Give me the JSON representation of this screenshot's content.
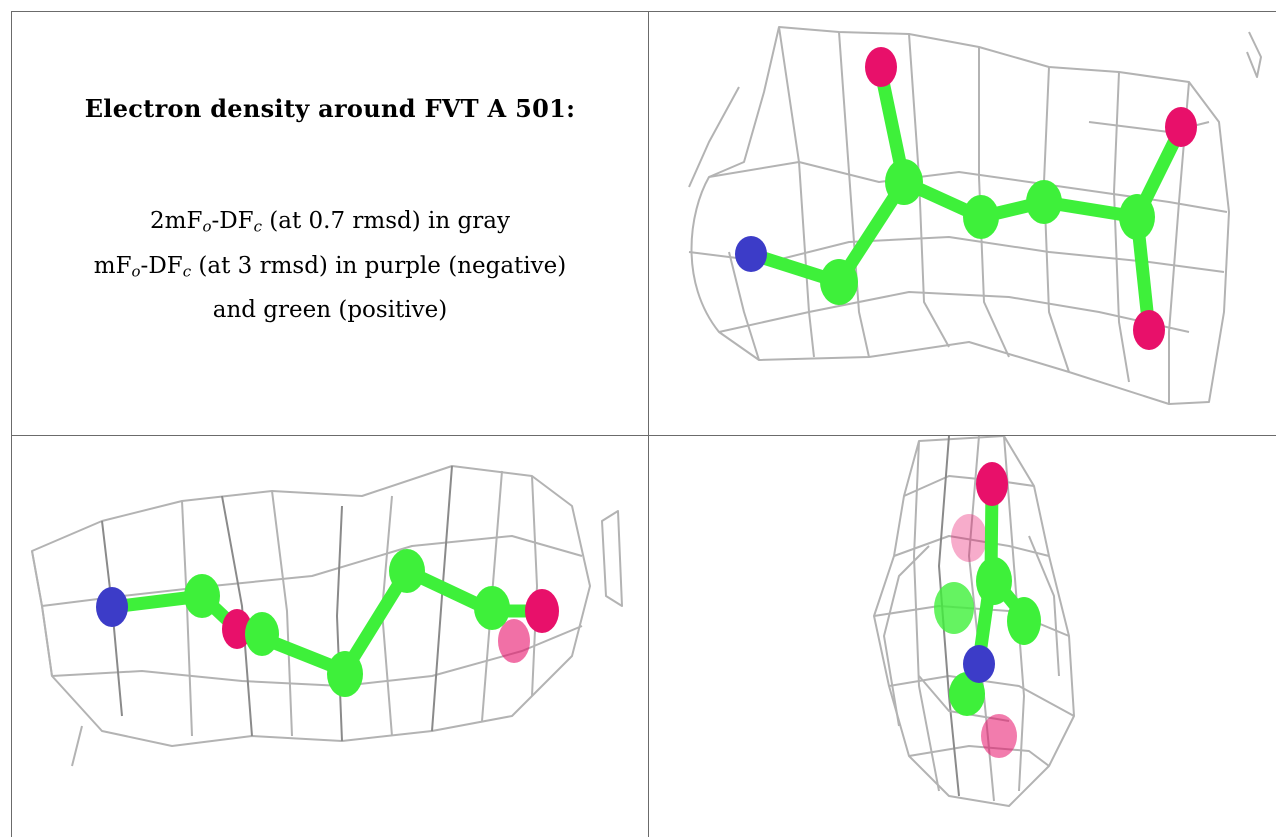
{
  "caption": {
    "title": "Electron density around FVT A 501:",
    "line1": {
      "prefix": "2mF",
      "sub1": "o",
      "mid": "-DF",
      "sub2": "c",
      "suffix": " (at 0.7 rmsd) in gray"
    },
    "line2": {
      "prefix": "mF",
      "sub1": "o",
      "mid": "-DF",
      "sub2": "c",
      "suffix": " (at 3 rmsd) in purple (negative)"
    },
    "line3": "and green (positive)"
  },
  "colors": {
    "carbon": "#3ef03a",
    "oxygen": "#e8106a",
    "nitrogen": "#3c3cc8",
    "mesh_gray": "#b3b3b3",
    "grid_line": "#6b6b6b"
  },
  "views": [
    {
      "name": "view-top-right",
      "atoms": [
        "N",
        "C",
        "C",
        "C",
        "C",
        "C",
        "O",
        "O",
        "O"
      ]
    },
    {
      "name": "view-bottom-left",
      "atoms": [
        "N",
        "C",
        "O",
        "C",
        "C",
        "C",
        "C",
        "O",
        "O"
      ]
    },
    {
      "name": "view-bottom-right",
      "atoms": [
        "O",
        "C",
        "C",
        "C",
        "N",
        "C",
        "O"
      ]
    }
  ]
}
